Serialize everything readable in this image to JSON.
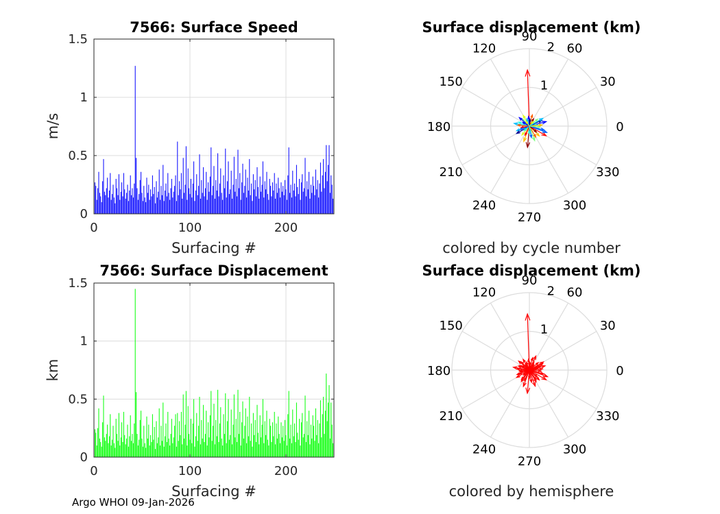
{
  "footer": "Argo WHOI 09-Jan-2026",
  "colors": {
    "speed": "#0000ff",
    "displacement": "#00ff00",
    "hemisphere": "#ff0000",
    "grid": "#dcdcdc"
  },
  "chart_data": [
    {
      "type": "bar",
      "title": "7566: Surface Speed",
      "xlabel": "Surfacing #",
      "ylabel": "m/s",
      "xlim": [
        0,
        250
      ],
      "ylim": [
        0,
        1.5
      ],
      "xticks": [
        "0",
        "100",
        "200"
      ],
      "yticks": [
        "0",
        "0.5",
        "1",
        "1.5"
      ],
      "grid": true,
      "color": "#0000ff",
      "values": [
        0.27,
        0.24,
        0.12,
        0.22,
        0.36,
        0.18,
        0.15,
        0.1,
        0.28,
        0.47,
        0.19,
        0.16,
        0.22,
        0.31,
        0.14,
        0.2,
        0.35,
        0.12,
        0.17,
        0.25,
        0.14,
        0.09,
        0.3,
        0.22,
        0.16,
        0.34,
        0.12,
        0.19,
        0.27,
        0.15,
        0.35,
        0.21,
        0.13,
        0.18,
        0.25,
        0.11,
        0.2,
        0.33,
        0.16,
        0.22,
        0.14,
        0.26,
        1.27,
        0.48,
        0.22,
        0.12,
        0.17,
        0.29,
        0.36,
        0.18,
        0.11,
        0.24,
        0.14,
        0.1,
        0.31,
        0.18,
        0.25,
        0.12,
        0.21,
        0.15,
        0.33,
        0.17,
        0.23,
        0.09,
        0.28,
        0.14,
        0.19,
        0.38,
        0.12,
        0.24,
        0.16,
        0.42,
        0.11,
        0.2,
        0.26,
        0.15,
        0.35,
        0.18,
        0.12,
        0.22,
        0.3,
        0.14,
        0.19,
        0.24,
        0.33,
        0.11,
        0.62,
        0.16,
        0.28,
        0.21,
        0.35,
        0.13,
        0.48,
        0.18,
        0.25,
        0.58,
        0.12,
        0.39,
        0.22,
        0.17,
        0.3,
        0.14,
        0.26,
        0.45,
        0.11,
        0.2,
        0.34,
        0.16,
        0.24,
        0.51,
        0.13,
        0.29,
        0.18,
        0.4,
        0.15,
        0.22,
        0.36,
        0.12,
        0.27,
        0.19,
        0.32,
        0.57,
        0.16,
        0.24,
        0.41,
        0.13,
        0.29,
        0.2,
        0.52,
        0.15,
        0.26,
        0.39,
        0.18,
        0.12,
        0.33,
        0.22,
        0.56,
        0.14,
        0.28,
        0.45,
        0.17,
        0.21,
        0.37,
        0.13,
        0.25,
        0.49,
        0.19,
        0.3,
        0.15,
        0.55,
        0.22,
        0.35,
        0.12,
        0.27,
        0.43,
        0.18,
        0.24,
        0.38,
        0.14,
        0.31,
        0.2,
        0.47,
        0.16,
        0.26,
        0.11,
        0.34,
        0.21,
        0.29,
        0.15,
        0.4,
        0.23,
        0.13,
        0.32,
        0.19,
        0.25,
        0.45,
        0.14,
        0.28,
        0.21,
        0.36,
        0.17,
        0.12,
        0.3,
        0.24,
        0.15,
        0.27,
        0.2,
        0.35,
        0.13,
        0.26,
        0.18,
        0.31,
        0.22,
        0.14,
        0.27,
        0.19,
        0.24,
        0.16,
        0.29,
        0.21,
        0.12,
        0.33,
        0.57,
        0.18,
        0.25,
        0.14,
        0.37,
        0.2,
        0.26,
        0.15,
        0.42,
        0.23,
        0.17,
        0.3,
        0.12,
        0.27,
        0.34,
        0.19,
        0.22,
        0.48,
        0.15,
        0.28,
        0.21,
        0.36,
        0.13,
        0.25,
        0.18,
        0.32,
        0.24,
        0.16,
        0.38,
        0.21,
        0.29,
        0.14,
        0.26,
        0.44,
        0.19,
        0.33,
        0.47,
        0.22,
        0.36,
        0.59,
        0.28,
        0.42,
        0.59,
        0.18,
        0.33,
        0.25,
        0.13,
        0.24
      ],
      "x_start": 1
    },
    {
      "type": "polar-quiver",
      "title": "Surface displacement (km)",
      "caption": "colored by cycle number",
      "angle_ticks": [
        "0",
        "30",
        "60",
        "90",
        "120",
        "150",
        "180",
        "210",
        "240",
        "270",
        "300",
        "330"
      ],
      "radius_ticks": [
        "1",
        "2"
      ],
      "rmax": 2,
      "vectors": [
        [
          92,
          1.45
        ],
        [
          15,
          0.45
        ],
        [
          345,
          0.4
        ],
        [
          200,
          0.35
        ],
        [
          160,
          0.3
        ],
        [
          40,
          0.28
        ],
        [
          120,
          0.32
        ],
        [
          250,
          0.42
        ],
        [
          300,
          0.33
        ],
        [
          330,
          0.5
        ],
        [
          60,
          0.22
        ],
        [
          210,
          0.38
        ],
        [
          95,
          0.25
        ],
        [
          280,
          0.3
        ],
        [
          170,
          0.4
        ],
        [
          10,
          0.2
        ],
        [
          135,
          0.26
        ],
        [
          230,
          0.3
        ],
        [
          315,
          0.36
        ],
        [
          75,
          0.3
        ],
        [
          190,
          0.22
        ],
        [
          265,
          0.55
        ],
        [
          25,
          0.35
        ],
        [
          150,
          0.2
        ],
        [
          340,
          0.48
        ],
        [
          110,
          0.2
        ],
        [
          220,
          0.18
        ],
        [
          290,
          0.4
        ],
        [
          50,
          0.16
        ],
        [
          5,
          0.33
        ],
        [
          175,
          0.3
        ],
        [
          245,
          0.26
        ],
        [
          320,
          0.24
        ],
        [
          85,
          0.18
        ],
        [
          140,
          0.34
        ],
        [
          200,
          0.26
        ],
        [
          30,
          0.4
        ],
        [
          270,
          0.2
        ],
        [
          355,
          0.28
        ],
        [
          125,
          0.16
        ]
      ]
    },
    {
      "type": "bar",
      "title": "7566: Surface Displacement",
      "xlabel": "Surfacing #",
      "ylabel": "km",
      "xlim": [
        0,
        250
      ],
      "ylim": [
        0,
        1.5
      ],
      "xticks": [
        "0",
        "100",
        "200"
      ],
      "yticks": [
        "0",
        "0.5",
        "1",
        "1.5"
      ],
      "grid": true,
      "color": "#00ff00",
      "values": [
        0.24,
        0.21,
        0.1,
        0.25,
        0.42,
        0.16,
        0.13,
        0.09,
        0.3,
        0.53,
        0.17,
        0.14,
        0.2,
        0.28,
        0.12,
        0.18,
        0.37,
        0.1,
        0.15,
        0.27,
        0.12,
        0.08,
        0.33,
        0.2,
        0.14,
        0.38,
        0.1,
        0.17,
        0.3,
        0.13,
        0.39,
        0.19,
        0.11,
        0.16,
        0.28,
        0.09,
        0.18,
        0.36,
        0.14,
        0.2,
        0.12,
        0.29,
        1.45,
        0.56,
        0.2,
        0.1,
        0.15,
        0.32,
        0.4,
        0.16,
        0.09,
        0.27,
        0.12,
        0.08,
        0.35,
        0.16,
        0.28,
        0.1,
        0.19,
        0.13,
        0.37,
        0.15,
        0.26,
        0.07,
        0.31,
        0.12,
        0.17,
        0.42,
        0.1,
        0.27,
        0.14,
        0.47,
        0.09,
        0.18,
        0.29,
        0.13,
        0.39,
        0.16,
        0.1,
        0.2,
        0.33,
        0.12,
        0.17,
        0.27,
        0.37,
        0.09,
        0.38,
        0.14,
        0.31,
        0.19,
        0.39,
        0.11,
        0.54,
        0.16,
        0.28,
        0.57,
        0.1,
        0.44,
        0.2,
        0.15,
        0.33,
        0.12,
        0.29,
        0.5,
        0.09,
        0.18,
        0.38,
        0.14,
        0.27,
        0.52,
        0.11,
        0.32,
        0.16,
        0.45,
        0.13,
        0.2,
        0.4,
        0.1,
        0.3,
        0.17,
        0.36,
        0.57,
        0.14,
        0.27,
        0.46,
        0.11,
        0.32,
        0.18,
        0.58,
        0.13,
        0.29,
        0.43,
        0.16,
        0.1,
        0.37,
        0.2,
        0.55,
        0.12,
        0.31,
        0.5,
        0.15,
        0.19,
        0.41,
        0.11,
        0.28,
        0.54,
        0.17,
        0.33,
        0.13,
        0.58,
        0.2,
        0.39,
        0.1,
        0.3,
        0.48,
        0.16,
        0.27,
        0.42,
        0.12,
        0.35,
        0.18,
        0.52,
        0.14,
        0.29,
        0.09,
        0.38,
        0.19,
        0.32,
        0.13,
        0.45,
        0.21,
        0.11,
        0.36,
        0.17,
        0.28,
        0.5,
        0.12,
        0.31,
        0.19,
        0.4,
        0.15,
        0.1,
        0.33,
        0.27,
        0.13,
        0.3,
        0.18,
        0.39,
        0.11,
        0.29,
        0.16,
        0.35,
        0.2,
        0.12,
        0.3,
        0.17,
        0.27,
        0.14,
        0.32,
        0.19,
        0.1,
        0.37,
        0.57,
        0.16,
        0.28,
        0.12,
        0.41,
        0.18,
        0.29,
        0.13,
        0.47,
        0.21,
        0.15,
        0.33,
        0.1,
        0.3,
        0.38,
        0.17,
        0.2,
        0.53,
        0.13,
        0.31,
        0.19,
        0.4,
        0.11,
        0.28,
        0.16,
        0.36,
        0.27,
        0.14,
        0.42,
        0.19,
        0.32,
        0.12,
        0.29,
        0.49,
        0.17,
        0.37,
        0.52,
        0.2,
        0.4,
        0.72,
        0.31,
        0.47,
        0.62,
        0.16,
        0.47,
        0.28,
        0.12,
        0.27
      ],
      "x_start": 1
    },
    {
      "type": "polar-quiver",
      "title": "Surface displacement (km)",
      "caption": "colored by hemisphere",
      "angle_ticks": [
        "0",
        "30",
        "60",
        "90",
        "120",
        "150",
        "180",
        "210",
        "240",
        "270",
        "300",
        "330"
      ],
      "radius_ticks": [
        "1",
        "2"
      ],
      "rmax": 2,
      "color": "#ff0000",
      "vectors": [
        [
          92,
          1.45
        ],
        [
          15,
          0.42
        ],
        [
          345,
          0.38
        ],
        [
          200,
          0.34
        ],
        [
          160,
          0.3
        ],
        [
          40,
          0.3
        ],
        [
          120,
          0.32
        ],
        [
          250,
          0.45
        ],
        [
          300,
          0.35
        ],
        [
          330,
          0.5
        ],
        [
          60,
          0.24
        ],
        [
          210,
          0.38
        ],
        [
          95,
          0.28
        ],
        [
          280,
          0.32
        ],
        [
          170,
          0.42
        ],
        [
          10,
          0.22
        ],
        [
          135,
          0.3
        ],
        [
          230,
          0.32
        ],
        [
          315,
          0.36
        ],
        [
          75,
          0.33
        ],
        [
          190,
          0.24
        ],
        [
          265,
          0.6
        ],
        [
          25,
          0.38
        ],
        [
          150,
          0.22
        ],
        [
          340,
          0.5
        ],
        [
          110,
          0.22
        ],
        [
          220,
          0.2
        ],
        [
          290,
          0.44
        ],
        [
          50,
          0.18
        ],
        [
          5,
          0.34
        ],
        [
          175,
          0.32
        ],
        [
          245,
          0.3
        ],
        [
          320,
          0.26
        ],
        [
          85,
          0.2
        ],
        [
          140,
          0.36
        ],
        [
          200,
          0.28
        ],
        [
          30,
          0.42
        ],
        [
          270,
          0.22
        ],
        [
          355,
          0.3
        ],
        [
          125,
          0.18
        ],
        [
          65,
          0.4
        ],
        [
          235,
          0.36
        ],
        [
          185,
          0.26
        ],
        [
          20,
          0.3
        ],
        [
          305,
          0.3
        ],
        [
          155,
          0.28
        ]
      ]
    }
  ]
}
